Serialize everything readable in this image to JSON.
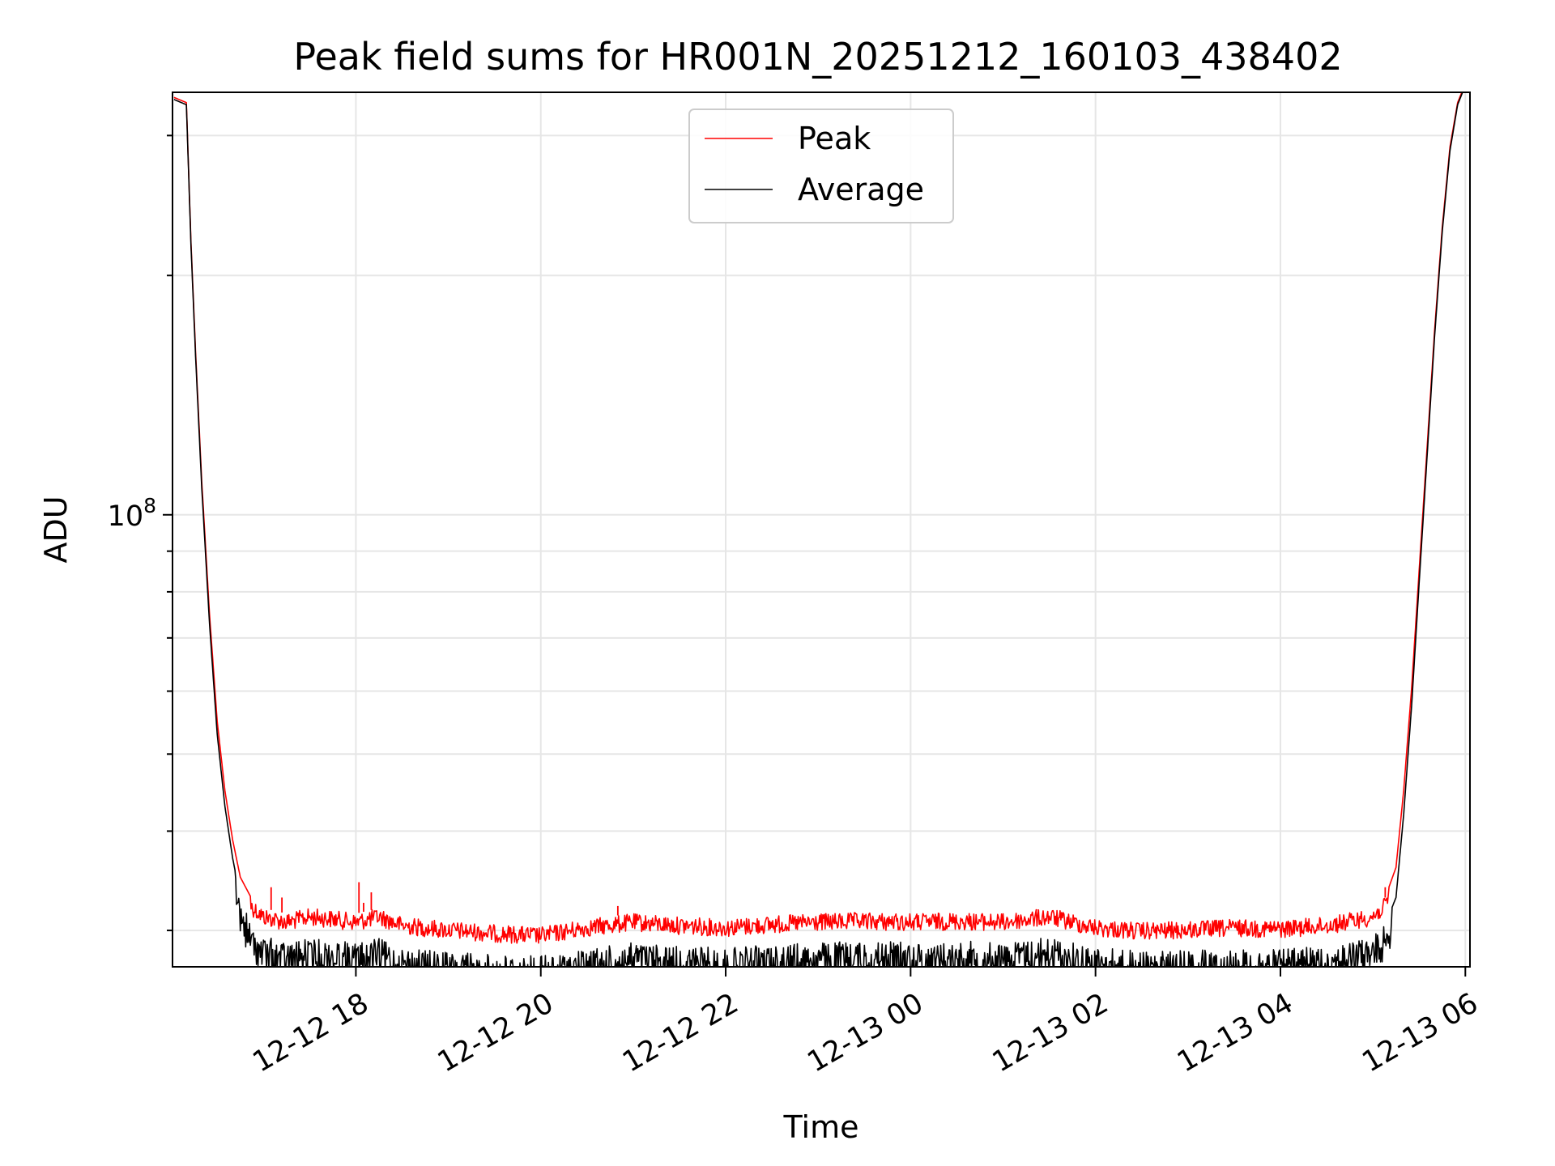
{
  "chart_data": {
    "type": "line",
    "title": "Peak field sums for HR001N_20251212_160103_438402",
    "xlabel": "Time",
    "ylabel": "ADU",
    "yscale": "log",
    "grid": true,
    "legend_position": "top-center",
    "xlim": [
      "2025-12-12 16:01",
      "2025-12-13 06:03"
    ],
    "ylim": [
      27000000,
      340000000
    ],
    "x_ticks": [
      {
        "value": "2025-12-12 18:00",
        "label": "12-12 18"
      },
      {
        "value": "2025-12-12 20:00",
        "label": "12-12 20"
      },
      {
        "value": "2025-12-12 22:00",
        "label": "12-12 22"
      },
      {
        "value": "2025-12-13 00:00",
        "label": "12-13 00"
      },
      {
        "value": "2025-12-13 02:00",
        "label": "12-13 02"
      },
      {
        "value": "2025-12-13 04:00",
        "label": "12-13 04"
      },
      {
        "value": "2025-12-13 06:00",
        "label": "12-13 06"
      }
    ],
    "y_ticks": [
      {
        "value": 100000000,
        "label": "10",
        "exponent": "8"
      }
    ],
    "series": [
      {
        "name": "Peak",
        "color": "#ff0000",
        "x": [
          "2025-12-12 16:02",
          "2025-12-12 16:10",
          "2025-12-12 16:13",
          "2025-12-12 16:16",
          "2025-12-12 16:20",
          "2025-12-12 16:25",
          "2025-12-12 16:30",
          "2025-12-12 16:35",
          "2025-12-12 16:40",
          "2025-12-12 16:45",
          "2025-12-12 16:52",
          "2025-12-12 17:00",
          "2025-12-12 17:15",
          "2025-12-12 17:30",
          "2025-12-12 17:45",
          "2025-12-12 18:00",
          "2025-12-12 18:15",
          "2025-12-12 18:30",
          "2025-12-12 19:00",
          "2025-12-12 19:30",
          "2025-12-12 20:00",
          "2025-12-12 20:30",
          "2025-12-12 21:00",
          "2025-12-12 21:30",
          "2025-12-12 22:00",
          "2025-12-12 22:30",
          "2025-12-12 23:00",
          "2025-12-12 23:30",
          "2025-12-13 00:00",
          "2025-12-13 00:30",
          "2025-12-13 01:00",
          "2025-12-13 01:30",
          "2025-12-13 02:00",
          "2025-12-13 02:30",
          "2025-12-13 03:00",
          "2025-12-13 03:30",
          "2025-12-13 04:00",
          "2025-12-13 04:30",
          "2025-12-13 05:00",
          "2025-12-13 05:08",
          "2025-12-13 05:15",
          "2025-12-13 05:20",
          "2025-12-13 05:25",
          "2025-12-13 05:30",
          "2025-12-13 05:35",
          "2025-12-13 05:40",
          "2025-12-13 05:45",
          "2025-12-13 05:50",
          "2025-12-13 05:55",
          "2025-12-13 05:59"
        ],
        "y": [
          335000000,
          330000000,
          220000000,
          160000000,
          110000000,
          75000000,
          55000000,
          45000000,
          39000000,
          35000000,
          33000000,
          32000000,
          31500000,
          32000000,
          31800000,
          31500000,
          32000000,
          31200000,
          30800000,
          30500000,
          30300000,
          31000000,
          31500000,
          31200000,
          31000000,
          31300000,
          31500000,
          31600000,
          31500000,
          31600000,
          31500000,
          32000000,
          31000000,
          30700000,
          30800000,
          31000000,
          30900000,
          31200000,
          32000000,
          33000000,
          36000000,
          45000000,
          60000000,
          85000000,
          120000000,
          170000000,
          230000000,
          290000000,
          330000000,
          345000000
        ]
      },
      {
        "name": "Average",
        "color": "#000000",
        "x": [
          "2025-12-12 16:02",
          "2025-12-12 16:10",
          "2025-12-12 16:13",
          "2025-12-12 16:16",
          "2025-12-12 16:20",
          "2025-12-12 16:25",
          "2025-12-12 16:30",
          "2025-12-12 16:35",
          "2025-12-12 16:40",
          "2025-12-12 16:45",
          "2025-12-12 16:52",
          "2025-12-12 17:00",
          "2025-12-12 17:15",
          "2025-12-12 17:30",
          "2025-12-12 17:45",
          "2025-12-12 18:00",
          "2025-12-12 18:15",
          "2025-12-12 18:30",
          "2025-12-12 19:00",
          "2025-12-12 19:30",
          "2025-12-12 20:00",
          "2025-12-12 20:30",
          "2025-12-12 21:00",
          "2025-12-12 21:30",
          "2025-12-12 22:00",
          "2025-12-12 22:30",
          "2025-12-12 23:00",
          "2025-12-12 23:30",
          "2025-12-13 00:00",
          "2025-12-13 00:30",
          "2025-12-13 01:00",
          "2025-12-13 01:30",
          "2025-12-13 02:00",
          "2025-12-13 02:30",
          "2025-12-13 03:00",
          "2025-12-13 03:30",
          "2025-12-13 04:00",
          "2025-12-13 04:30",
          "2025-12-13 05:00",
          "2025-12-13 05:08",
          "2025-12-13 05:15",
          "2025-12-13 05:20",
          "2025-12-13 05:25",
          "2025-12-13 05:30",
          "2025-12-13 05:35",
          "2025-12-13 05:40",
          "2025-12-13 05:45",
          "2025-12-13 05:50",
          "2025-12-13 05:55",
          "2025-12-13 05:59"
        ],
        "y": [
          333000000,
          328000000,
          218000000,
          158000000,
          108000000,
          73000000,
          53000000,
          43000000,
          37000000,
          33000000,
          30500000,
          29500000,
          29000000,
          29300000,
          29200000,
          29000000,
          29300000,
          28600000,
          28200000,
          28000000,
          27900000,
          28400000,
          29000000,
          28700000,
          28500000,
          28800000,
          29000000,
          29100000,
          29000000,
          29100000,
          29000000,
          29500000,
          28600000,
          28300000,
          28300000,
          28500000,
          28400000,
          28700000,
          29500000,
          30500000,
          33000000,
          42000000,
          57000000,
          82000000,
          117000000,
          167000000,
          227000000,
          287000000,
          328000000,
          343000000
        ]
      }
    ],
    "noise": {
      "Peak": {
        "start": "2025-12-12 16:52",
        "end": "2025-12-13 05:10",
        "below_fraction": 0.05
      },
      "Average": {
        "start": "2025-12-12 16:42",
        "end": "2025-12-13 05:12",
        "below_fraction": 0.1
      }
    },
    "spikes": [
      {
        "series": "Peak",
        "x": "2025-12-12 16:52",
        "y": 33000000
      },
      {
        "series": "Peak",
        "x": "2025-12-12 17:05",
        "y": 34000000
      },
      {
        "series": "Peak",
        "x": "2025-12-12 17:12",
        "y": 33000000
      },
      {
        "series": "Peak",
        "x": "2025-12-12 18:02",
        "y": 34500000
      },
      {
        "series": "Peak",
        "x": "2025-12-12 18:10",
        "y": 33500000
      },
      {
        "series": "Peak",
        "x": "2025-12-12 18:05",
        "y": 32500000
      },
      {
        "series": "Peak",
        "x": "2025-12-12 20:50",
        "y": 32200000
      },
      {
        "series": "Peak",
        "x": "2025-12-13 01:22",
        "y": 31800000
      },
      {
        "series": "Peak",
        "x": "2025-12-13 05:08",
        "y": 34000000
      }
    ]
  }
}
